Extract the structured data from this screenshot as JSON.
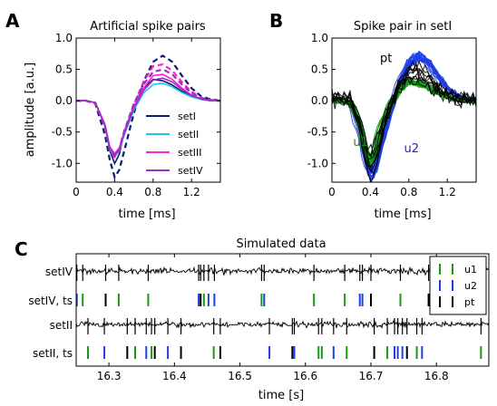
{
  "panels": {
    "a": "A",
    "b": "B",
    "c": "C"
  },
  "chart_data": [
    {
      "type": "line",
      "title": "Artificial spike pairs",
      "xlabel": "time [ms]",
      "ylabel": "amplitude [a.u.]",
      "xlim": [
        0,
        1.5
      ],
      "ylim": [
        -1.3,
        1.0
      ],
      "xticks": [
        "0",
        "0.4",
        "0.8",
        "1.2"
      ],
      "yticks": [
        "1.0",
        "0.5",
        "0.0",
        "-0.5",
        "-1.0"
      ],
      "legend_position": "lower-right",
      "series": [
        {
          "name": "setI",
          "color": "#0d1a6e",
          "x": [
            0,
            0.1,
            0.2,
            0.3,
            0.35,
            0.4,
            0.45,
            0.5,
            0.6,
            0.7,
            0.8,
            0.9,
            1.0,
            1.1,
            1.2,
            1.3,
            1.4,
            1.5
          ],
          "y": [
            0,
            0,
            -0.03,
            -0.4,
            -0.8,
            -1.0,
            -0.85,
            -0.5,
            -0.1,
            0.2,
            0.34,
            0.32,
            0.25,
            0.15,
            0.07,
            0.02,
            0,
            0
          ]
        },
        {
          "name": "setI",
          "color": "#0d1a6e",
          "dashed": true,
          "x": [
            0,
            0.1,
            0.2,
            0.3,
            0.35,
            0.4,
            0.45,
            0.5,
            0.6,
            0.7,
            0.8,
            0.9,
            1.0,
            1.1,
            1.2,
            1.3,
            1.4,
            1.5
          ],
          "y": [
            0,
            0,
            -0.05,
            -0.55,
            -0.95,
            -1.22,
            -1.1,
            -0.8,
            -0.2,
            0.3,
            0.62,
            0.72,
            0.62,
            0.4,
            0.2,
            0.07,
            0.02,
            0
          ]
        },
        {
          "name": "setII",
          "color": "#22c6f0",
          "x": [
            0,
            0.1,
            0.2,
            0.3,
            0.35,
            0.4,
            0.45,
            0.5,
            0.6,
            0.7,
            0.8,
            0.9,
            1.0,
            1.1,
            1.2,
            1.3,
            1.4,
            1.5
          ],
          "y": [
            0,
            0,
            -0.03,
            -0.42,
            -0.78,
            -0.9,
            -0.8,
            -0.55,
            -0.15,
            0.12,
            0.26,
            0.28,
            0.22,
            0.13,
            0.06,
            0.02,
            0,
            0
          ]
        },
        {
          "name": "setIII",
          "color": "#ff22cc",
          "x": [
            0,
            0.1,
            0.2,
            0.3,
            0.35,
            0.4,
            0.45,
            0.5,
            0.6,
            0.7,
            0.8,
            0.9,
            1.0,
            1.1,
            1.2,
            1.3,
            1.4,
            1.5
          ],
          "y": [
            0,
            0,
            -0.03,
            -0.38,
            -0.74,
            -0.84,
            -0.75,
            -0.5,
            -0.1,
            0.2,
            0.4,
            0.42,
            0.34,
            0.2,
            0.09,
            0.03,
            0,
            0
          ]
        },
        {
          "name": "setIII",
          "color": "#ff22cc",
          "dashed": true,
          "x": [
            0,
            0.1,
            0.2,
            0.3,
            0.35,
            0.4,
            0.45,
            0.5,
            0.6,
            0.7,
            0.8,
            0.9,
            1.0,
            1.1,
            1.2,
            1.3,
            1.4,
            1.5
          ],
          "y": [
            0,
            0,
            -0.04,
            -0.42,
            -0.8,
            -0.9,
            -0.78,
            -0.5,
            -0.06,
            0.3,
            0.55,
            0.58,
            0.48,
            0.3,
            0.14,
            0.05,
            0.01,
            0
          ]
        },
        {
          "name": "setIV",
          "color": "#9b2fc8",
          "x": [
            0,
            0.1,
            0.2,
            0.3,
            0.35,
            0.4,
            0.45,
            0.5,
            0.6,
            0.7,
            0.8,
            0.9,
            1.0,
            1.1,
            1.2,
            1.3,
            1.4,
            1.5
          ],
          "y": [
            0,
            0,
            -0.03,
            -0.4,
            -0.76,
            -0.87,
            -0.77,
            -0.52,
            -0.12,
            0.16,
            0.33,
            0.36,
            0.3,
            0.18,
            0.08,
            0.03,
            0,
            0
          ]
        },
        {
          "name": "setIV",
          "color": "#9b2fc8",
          "dashed": true,
          "x": [
            0,
            0.1,
            0.2,
            0.3,
            0.35,
            0.4,
            0.45,
            0.5,
            0.6,
            0.7,
            0.8,
            0.9,
            1.0,
            1.1,
            1.2,
            1.3,
            1.4,
            1.5
          ],
          "y": [
            0,
            0,
            -0.04,
            -0.41,
            -0.78,
            -0.88,
            -0.76,
            -0.48,
            -0.05,
            0.26,
            0.46,
            0.5,
            0.42,
            0.26,
            0.12,
            0.04,
            0.01,
            0
          ]
        }
      ],
      "legend": [
        {
          "name": "setI",
          "color": "#0d1a6e"
        },
        {
          "name": "setII",
          "color": "#22c6f0"
        },
        {
          "name": "setIII",
          "color": "#ff22cc"
        },
        {
          "name": "setIV",
          "color": "#9b2fc8"
        }
      ]
    },
    {
      "type": "line",
      "title": "Spike pair in setI",
      "xlabel": "time [ms]",
      "ylabel": "",
      "xlim": [
        0,
        1.5
      ],
      "ylim": [
        -1.3,
        1.0
      ],
      "xticks": [
        "0",
        "0.4",
        "0.8",
        "1.2"
      ],
      "yticks": [
        "1.0",
        "0.5",
        "0.0",
        "-0.5",
        "-1.0"
      ],
      "annotations": [
        {
          "text": "pt",
          "color": "#000000",
          "x": 0.5,
          "y": 0.62
        },
        {
          "text": "u1",
          "color": "#1a8a1a",
          "x": 0.22,
          "y": -0.72
        },
        {
          "text": "u2",
          "color": "#2222cc",
          "x": 0.75,
          "y": -0.82
        }
      ],
      "clusters": [
        {
          "name": "u2",
          "color": "#1f3fe6",
          "count": 26,
          "spread": 0.1,
          "template": {
            "x": [
              0,
              0.1,
              0.2,
              0.3,
              0.35,
              0.4,
              0.45,
              0.5,
              0.6,
              0.7,
              0.8,
              0.9,
              1.0,
              1.1,
              1.2,
              1.3,
              1.4,
              1.5
            ],
            "y": [
              0,
              0,
              -0.05,
              -0.55,
              -0.95,
              -1.2,
              -1.1,
              -0.8,
              -0.2,
              0.3,
              0.62,
              0.72,
              0.62,
              0.4,
              0.2,
              0.07,
              0.02,
              0
            ]
          }
        },
        {
          "name": "u1",
          "color": "#1a9a1a",
          "count": 26,
          "spread": 0.1,
          "template": {
            "x": [
              0,
              0.1,
              0.2,
              0.3,
              0.35,
              0.4,
              0.45,
              0.5,
              0.6,
              0.7,
              0.8,
              0.9,
              1.0,
              1.1,
              1.2,
              1.3,
              1.4,
              1.5
            ],
            "y": [
              0,
              0,
              -0.03,
              -0.4,
              -0.8,
              -0.98,
              -0.85,
              -0.5,
              -0.1,
              0.18,
              0.3,
              0.28,
              0.22,
              0.13,
              0.06,
              0.02,
              0,
              0
            ]
          }
        },
        {
          "name": "pt",
          "color": "#000000",
          "count": 9,
          "spread": 0.28,
          "template": {
            "x": [
              0,
              0.1,
              0.2,
              0.3,
              0.35,
              0.4,
              0.45,
              0.5,
              0.6,
              0.7,
              0.8,
              0.9,
              1.0,
              1.1,
              1.2,
              1.3,
              1.4,
              1.5
            ],
            "y": [
              0.05,
              0.05,
              0,
              -0.45,
              -0.85,
              -1.05,
              -0.95,
              -0.6,
              -0.12,
              0.3,
              0.45,
              0.45,
              0.35,
              0.2,
              0.1,
              0.03,
              0.01,
              0
            ]
          }
        }
      ]
    },
    {
      "type": "line",
      "title": "Simulated data",
      "xlabel": "time [s]",
      "xlim": [
        16.25,
        16.88
      ],
      "xticks": [
        "16.3",
        "16.4",
        "16.5",
        "16.6",
        "16.7",
        "16.8"
      ],
      "row_labels": [
        "setIV",
        "setIV, ts",
        "setII",
        "setII, ts"
      ],
      "legend": [
        {
          "name": "u1",
          "color": "#1a9a1a"
        },
        {
          "name": "u2",
          "color": "#1f3fe6"
        },
        {
          "name": "pt",
          "color": "#000000"
        }
      ],
      "legend_position": "top-right",
      "spike_times": {
        "setIV": {
          "u1": [
            16.26,
            16.315,
            16.36,
            16.445,
            16.533,
            16.613,
            16.66,
            16.745
          ],
          "u2": [
            16.251,
            16.437,
            16.452,
            16.461,
            16.537,
            16.683,
            16.687
          ],
          "pt": [
            16.295,
            16.44,
            16.7,
            16.788
          ]
        },
        "setII": {
          "u1": [
            16.268,
            16.34,
            16.365,
            16.46,
            16.62,
            16.625,
            16.663,
            16.725,
            16.77,
            16.868
          ],
          "u2": [
            16.293,
            16.357,
            16.39,
            16.545,
            16.583,
            16.643,
            16.736,
            16.741,
            16.748,
            16.778
          ],
          "pt": [
            16.328,
            16.37,
            16.41,
            16.47,
            16.58,
            16.705,
            16.755
          ]
        }
      }
    }
  ]
}
